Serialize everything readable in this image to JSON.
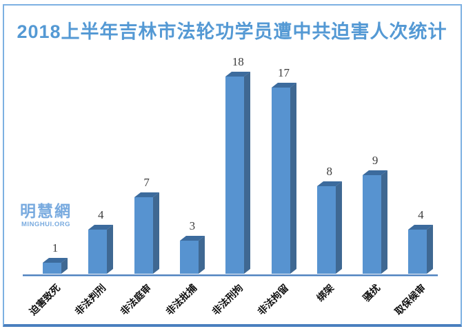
{
  "title": "2018上半年吉林市法轮功学员遭中共迫害人次统计",
  "watermark": {
    "cn": "明慧網",
    "en": "MINGHUI.ORG"
  },
  "chart_data": {
    "type": "bar",
    "style": "3d-column",
    "title": "2018上半年吉林市法轮功学员遭中共迫害人次统计",
    "categories": [
      "迫害致死",
      "非法判刑",
      "非法庭审",
      "非法批捕",
      "非法刑拘",
      "非法拘留",
      "绑架",
      "骚扰",
      "取保候审"
    ],
    "values": [
      1,
      4,
      7,
      3,
      18,
      17,
      8,
      9,
      4
    ],
    "xlabel": "",
    "ylabel": "",
    "ylim": [
      0,
      18
    ],
    "grid": false,
    "legend": false,
    "data_labels": true,
    "category_label_rotation_deg": 45
  },
  "colors": {
    "bar_front": "#5793d0",
    "bar_top": "#3c6b9d",
    "bar_side": "#3f6892",
    "title": "#5499d4",
    "border": "#7cb0e2",
    "border_bottom": "#4a7fbe",
    "axis": "#4f81bd",
    "watermark": "#78aadf",
    "label": "#3d3d3d",
    "category": "#111111"
  }
}
